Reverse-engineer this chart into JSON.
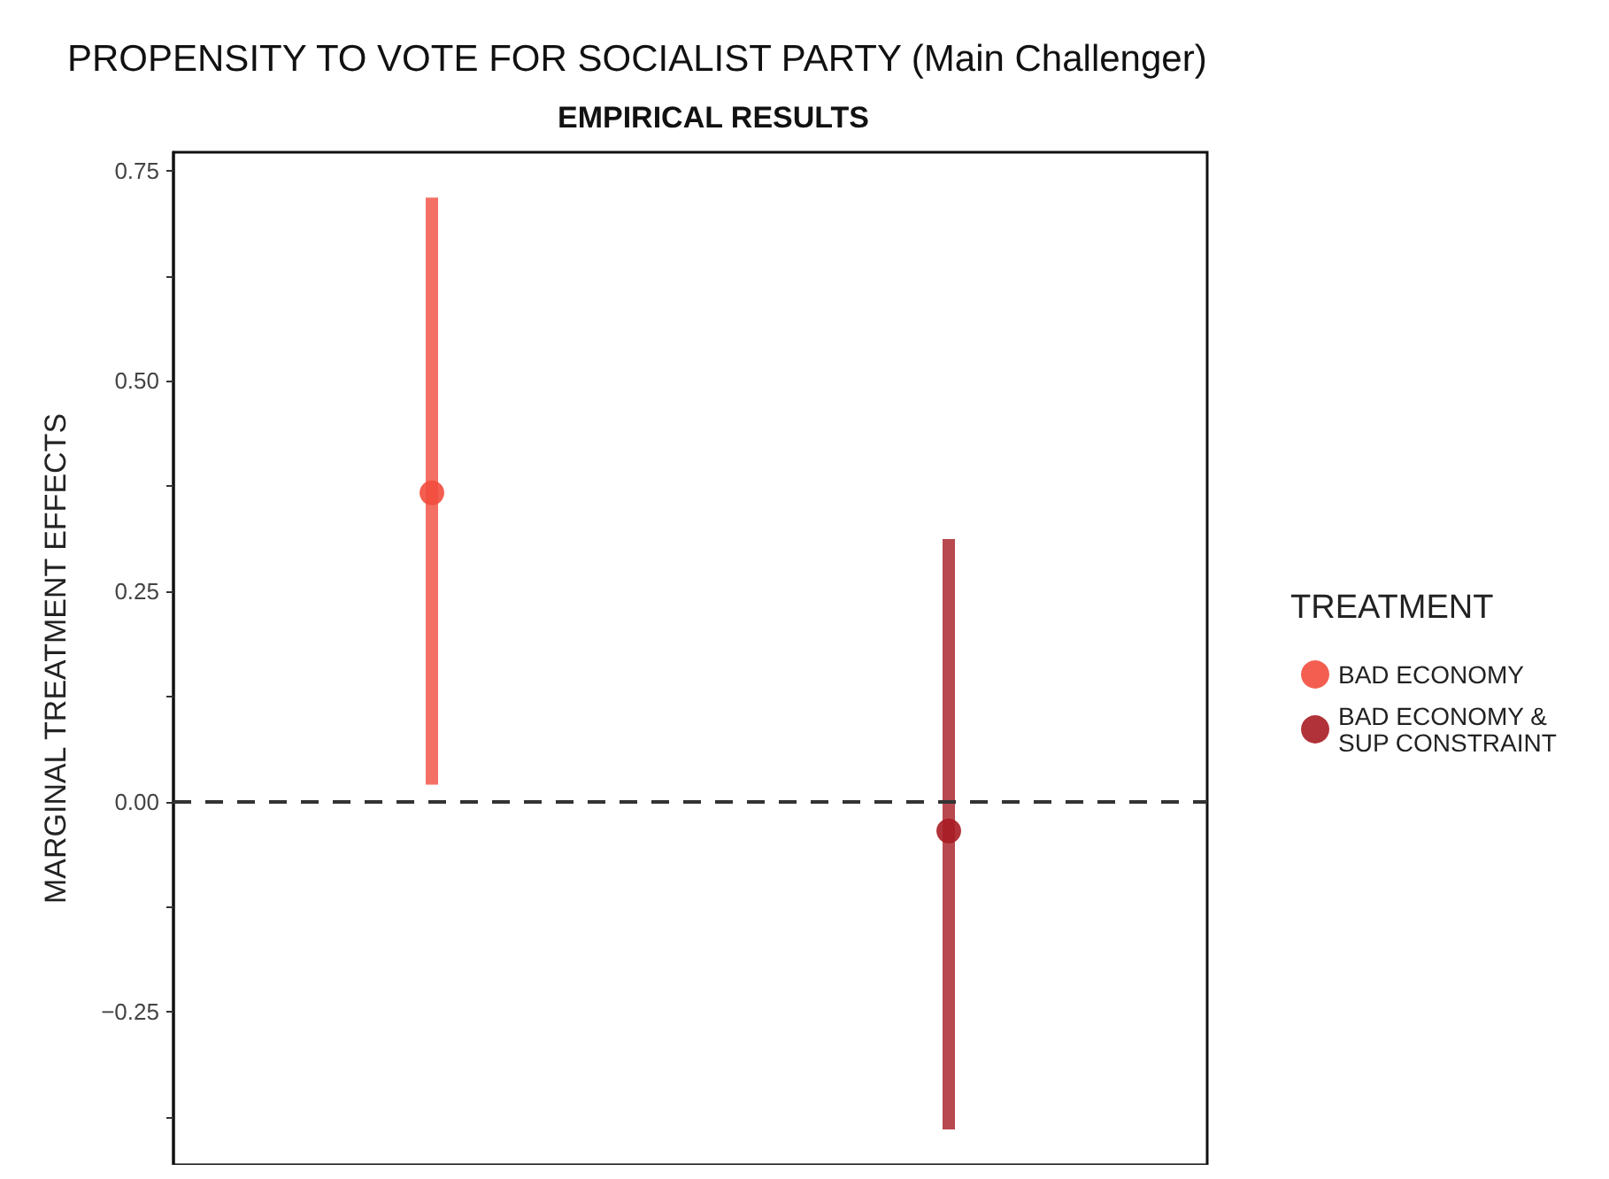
{
  "chart_data": {
    "type": "scatter",
    "title": "PROPENSITY TO VOTE FOR SOCIALIST PARTY (Main Challenger)",
    "subtitle": "EMPIRICAL RESULTS",
    "ylabel": "MARGINAL TREATMENT EFFECTS",
    "legend_title": "TREATMENT",
    "categories": [
      null,
      null
    ],
    "series": [
      {
        "name": "BAD ECONOMY",
        "color": "#f24c3d",
        "values": [
          0.367,
          null
        ],
        "errors": [
          [
            0.02,
            0.718
          ],
          null
        ]
      },
      {
        "name": "BAD ECONOMY & SUP CONSTRAINT",
        "color": "#a81c24",
        "values": [
          null,
          -0.035
        ],
        "errors": [
          null,
          [
            -0.39,
            0.312
          ]
        ]
      }
    ],
    "ylim": [
      -0.432,
      0.772
    ],
    "yticks": [
      {
        "value": -0.375,
        "label": null
      },
      {
        "value": -0.25,
        "label": "−0.25"
      },
      {
        "value": -0.125,
        "label": null
      },
      {
        "value": 0,
        "label": "0.00"
      },
      {
        "value": 0.125,
        "label": null
      },
      {
        "value": 0.25,
        "label": "0.25"
      },
      {
        "value": 0.375,
        "label": null
      },
      {
        "value": 0.5,
        "label": "0.50"
      },
      {
        "value": 0.625,
        "label": null
      },
      {
        "value": 0.75,
        "label": "0.75"
      }
    ],
    "ref_lines": [
      {
        "axis": "y",
        "value": 0,
        "label": null,
        "color": "#333333",
        "line_style": "dashed"
      }
    ],
    "grid": false,
    "legend": "right",
    "marker": "circle",
    "tick_labels": "y"
  }
}
